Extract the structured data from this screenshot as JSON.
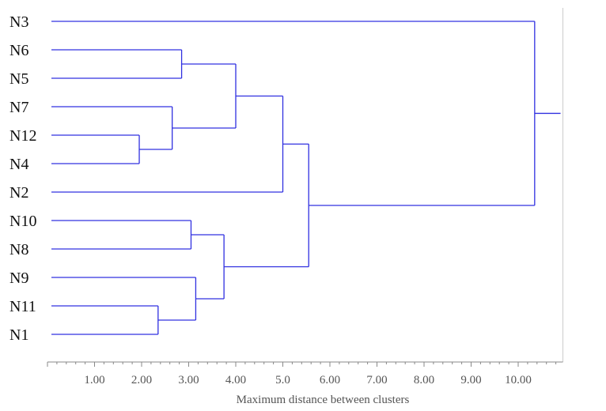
{
  "chart_data": {
    "type": "dendrogram",
    "xlabel": "Maximum distance between clusters",
    "leaves": [
      "N3",
      "N6",
      "N5",
      "N7",
      "N12",
      "N4",
      "N2",
      "N10",
      "N8",
      "N9",
      "N11",
      "N1"
    ],
    "merges": [
      {
        "id": "c1",
        "children": [
          "N12",
          "N4"
        ],
        "distance": 1.95
      },
      {
        "id": "c2",
        "children": [
          "N7",
          "c1"
        ],
        "distance": 2.65
      },
      {
        "id": "c3",
        "children": [
          "N6",
          "N5"
        ],
        "distance": 2.85
      },
      {
        "id": "c4",
        "children": [
          "c3",
          "c2"
        ],
        "distance": 4.0
      },
      {
        "id": "c5",
        "children": [
          "c4",
          "N2"
        ],
        "distance": 5.0
      },
      {
        "id": "c6",
        "children": [
          "N11",
          "N1"
        ],
        "distance": 2.35
      },
      {
        "id": "c7",
        "children": [
          "N9",
          "c6"
        ],
        "distance": 3.15
      },
      {
        "id": "c8",
        "children": [
          "N10",
          "N8"
        ],
        "distance": 3.05
      },
      {
        "id": "c9",
        "children": [
          "c8",
          "c7"
        ],
        "distance": 3.75
      },
      {
        "id": "c10",
        "children": [
          "c5",
          "c9"
        ],
        "distance": 5.55
      },
      {
        "id": "c11",
        "children": [
          "N3",
          "c10"
        ],
        "distance": 10.35
      }
    ],
    "root_tail_distance": 10.9,
    "ticks": [
      {
        "value": 1,
        "label": "1.00"
      },
      {
        "value": 2,
        "label": "2.00"
      },
      {
        "value": 3,
        "label": "3.00"
      },
      {
        "value": 4,
        "label": "4.00"
      },
      {
        "value": 5,
        "label": "5.0"
      },
      {
        "value": 6,
        "label": "6.00"
      },
      {
        "value": 7,
        "label": "7.00"
      },
      {
        "value": 8,
        "label": "8.00"
      },
      {
        "value": 9,
        "label": "9.00"
      },
      {
        "value": 10,
        "label": "10.00"
      }
    ],
    "xlim": [
      0,
      10.95
    ],
    "colors": {
      "lines": "#3030e0",
      "axis": "#888888"
    }
  }
}
